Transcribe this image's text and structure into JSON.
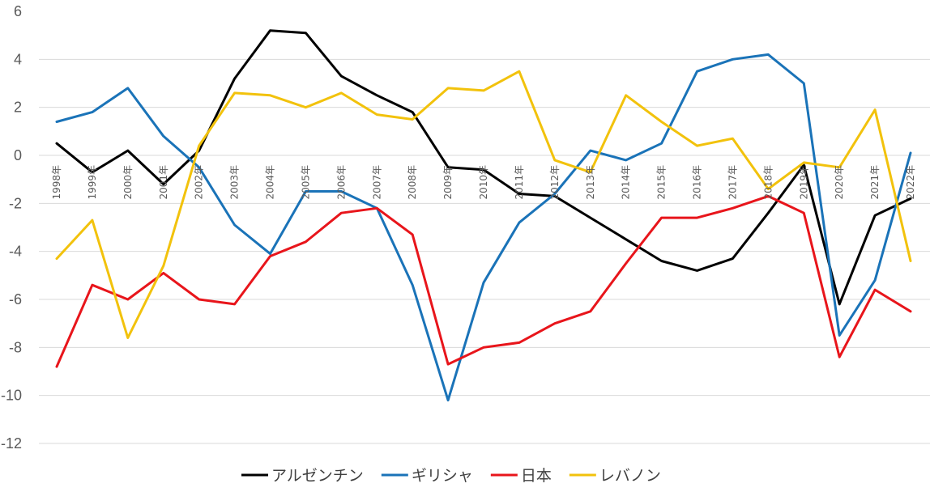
{
  "chart_data": {
    "type": "line",
    "title": "",
    "xlabel": "",
    "ylabel": "",
    "ylim": [
      -12,
      6
    ],
    "yticks": [
      6,
      4,
      2,
      0,
      -2,
      -4,
      -6,
      -8,
      -10,
      -12
    ],
    "grid": true,
    "legend_position": "bottom",
    "categories": [
      "1998年",
      "1999年",
      "2000年",
      "2001年",
      "2002年",
      "2003年",
      "2004年",
      "2005年",
      "2006年",
      "2007年",
      "2008年",
      "2009年",
      "2010年",
      "2011年",
      "2012年",
      "2013年",
      "2014年",
      "2015年",
      "2016年",
      "2017年",
      "2018年",
      "2019年",
      "2020年",
      "2021年",
      "2022年"
    ],
    "series": [
      {
        "name": "アルゼンチン",
        "color": "#000000",
        "values": [
          0.5,
          -0.7,
          0.2,
          -1.2,
          0.2,
          3.2,
          5.2,
          5.1,
          3.3,
          2.5,
          1.8,
          -0.5,
          -0.6,
          -1.6,
          -1.7,
          -2.6,
          -3.5,
          -4.4,
          -4.8,
          -4.3,
          -2.4,
          -0.4,
          -6.2,
          -2.5,
          -1.8
        ]
      },
      {
        "name": "ギリシャ",
        "color": "#1a73b8",
        "values": [
          1.4,
          1.8,
          2.8,
          0.8,
          -0.5,
          -2.9,
          -4.1,
          -1.5,
          -1.5,
          -2.2,
          -5.4,
          -10.2,
          -5.3,
          -2.8,
          -1.6,
          0.2,
          -0.2,
          0.5,
          3.5,
          4.0,
          4.2,
          3.0,
          -7.5,
          -5.2,
          0.1
        ]
      },
      {
        "name": "日本",
        "color": "#e8151b",
        "values": [
          -8.8,
          -5.4,
          -6.0,
          -4.9,
          -6.0,
          -6.2,
          -4.2,
          -3.6,
          -2.4,
          -2.2,
          -3.3,
          -8.7,
          -8.0,
          -7.8,
          -7.0,
          -6.5,
          -4.5,
          -2.6,
          -2.6,
          -2.2,
          -1.7,
          -2.4,
          -8.4,
          -5.6,
          -6.5
        ]
      },
      {
        "name": "レバノン",
        "color": "#f2c20c",
        "values": [
          -4.3,
          -2.7,
          -7.6,
          -4.6,
          0.4,
          2.6,
          2.5,
          2.0,
          2.6,
          1.7,
          1.5,
          2.8,
          2.7,
          3.5,
          -0.2,
          -0.7,
          2.5,
          1.4,
          0.4,
          0.7,
          -1.4,
          -0.3,
          -0.5,
          1.9,
          -4.4
        ]
      }
    ]
  }
}
